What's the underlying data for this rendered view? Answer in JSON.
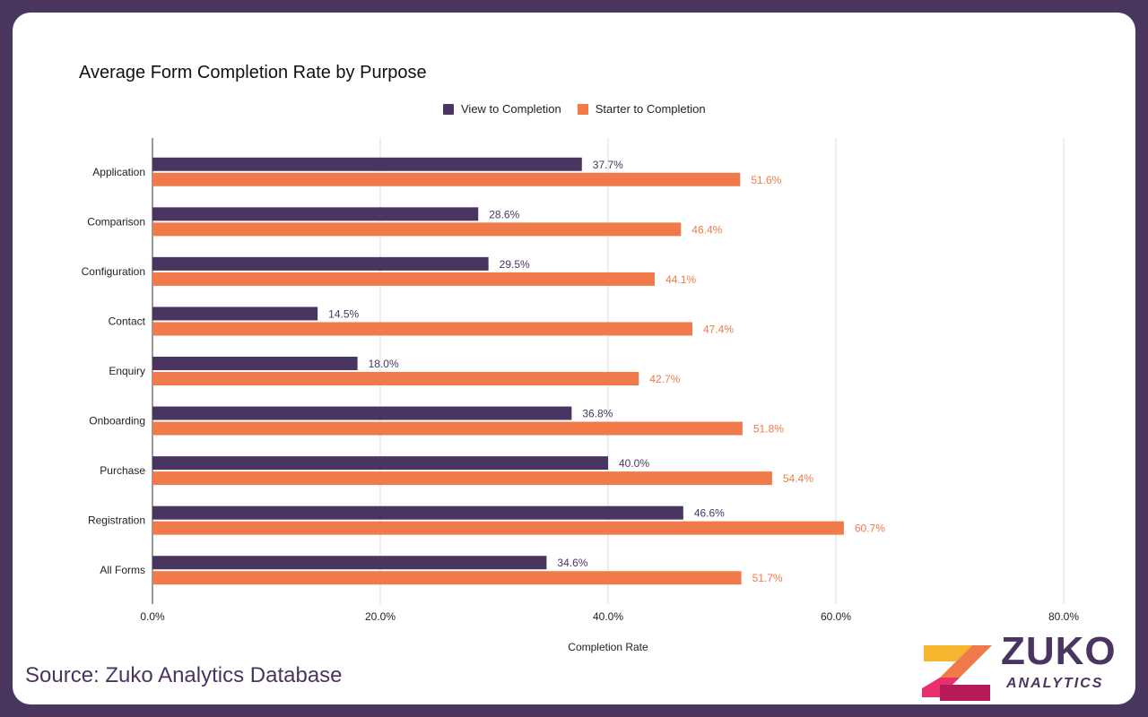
{
  "chart_data": {
    "type": "bar",
    "orientation": "horizontal",
    "title": "Average Form Completion Rate by Purpose",
    "xlabel": "Completion Rate",
    "ylabel": "",
    "xlim": [
      0,
      80
    ],
    "x_ticks": [
      "0.0%",
      "20.0%",
      "40.0%",
      "60.0%",
      "80.0%"
    ],
    "grid": "vertical",
    "legend_position": "top",
    "categories": [
      "Application",
      "Comparison",
      "Configuration",
      "Contact",
      "Enquiry",
      "Onboarding",
      "Purchase",
      "Registration",
      "All Forms"
    ],
    "series": [
      {
        "name": "View to Completion",
        "color": "#4a3560",
        "values": [
          37.7,
          28.6,
          29.5,
          14.5,
          18.0,
          36.8,
          40.0,
          46.6,
          34.6
        ],
        "labels": [
          "37.7%",
          "28.6%",
          "29.5%",
          "14.5%",
          "18.0%",
          "36.8%",
          "40.0%",
          "46.6%",
          "34.6%"
        ]
      },
      {
        "name": "Starter to Completion",
        "color": "#f07a4a",
        "values": [
          51.6,
          46.4,
          44.1,
          47.4,
          42.7,
          51.8,
          54.4,
          60.7,
          51.7
        ],
        "labels": [
          "51.6%",
          "46.4%",
          "44.1%",
          "47.4%",
          "42.7%",
          "51.8%",
          "54.4%",
          "60.7%",
          "51.7%"
        ]
      }
    ]
  },
  "footer": {
    "source": "Source: Zuko Analytics Database"
  },
  "logo": {
    "word": "ZUKO",
    "sub": "ANALYTICS",
    "colors": [
      "#f5b52e",
      "#f07a4a",
      "#e8306a",
      "#b51a5a"
    ]
  }
}
